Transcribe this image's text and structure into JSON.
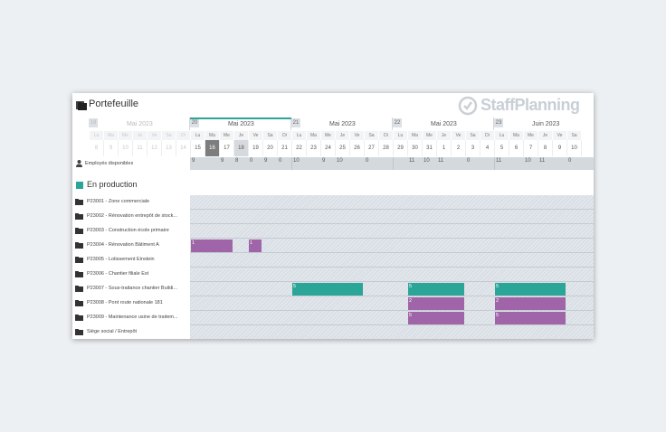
{
  "header": {
    "title": "Portefeuille",
    "logo": {
      "part1": "Staff",
      "part2": "Planning"
    }
  },
  "weeks": [
    {
      "num": "19",
      "month": "Mai 2023",
      "faded": true
    },
    {
      "num": "20",
      "month": "Mai 2023",
      "faded": false
    },
    {
      "num": "21",
      "month": "Mai 2023",
      "faded": false
    },
    {
      "num": "22",
      "month": "Mai 2023",
      "faded": false
    },
    {
      "num": "23",
      "month": "Juin 2023",
      "faded": false
    }
  ],
  "days": [
    "Lu",
    "Ma",
    "Me",
    "Je",
    "Ve",
    "Sa",
    "Di",
    "Lu",
    "Ma",
    "Me",
    "Je",
    "Ve",
    "Sa",
    "Di",
    "Lu",
    "Ma",
    "Me",
    "Je",
    "Ve",
    "Sa",
    "Di",
    "Lu",
    "Ma",
    "Me",
    "Je",
    "Ve",
    "Sa",
    "Di",
    "Lu",
    "Ma",
    "Me",
    "Je",
    "Ve",
    "Sa",
    "Di"
  ],
  "dates": [
    "8",
    "9",
    "10",
    "11",
    "12",
    "13",
    "14",
    "15",
    "16",
    "17",
    "18",
    "19",
    "20",
    "21",
    "22",
    "23",
    "24",
    "25",
    "26",
    "27",
    "28",
    "29",
    "30",
    "31",
    "1",
    "2",
    "3",
    "4",
    "5",
    "6",
    "7",
    "8",
    "9",
    "10",
    "11"
  ],
  "availability": {
    "label": "Employés disponibles",
    "values": [
      {
        "day_index": 7,
        "value": "9"
      },
      {
        "day_index": 9,
        "value": "9"
      },
      {
        "day_index": 10,
        "value": "8"
      },
      {
        "day_index": 11,
        "value": "0"
      },
      {
        "day_index": 12,
        "value": "9"
      },
      {
        "day_index": 13,
        "value": "0"
      },
      {
        "day_index": 14,
        "value": "10"
      },
      {
        "day_index": 16,
        "value": "9"
      },
      {
        "day_index": 17,
        "value": "10"
      },
      {
        "day_index": 19,
        "value": "0"
      },
      {
        "day_index": 22,
        "value": "11"
      },
      {
        "day_index": 23,
        "value": "10"
      },
      {
        "day_index": 24,
        "value": "11"
      },
      {
        "day_index": 26,
        "value": "0"
      },
      {
        "day_index": 28,
        "value": "11"
      },
      {
        "day_index": 30,
        "value": "10"
      },
      {
        "day_index": 31,
        "value": "11"
      },
      {
        "day_index": 33,
        "value": "0"
      }
    ]
  },
  "section": {
    "label": "En production",
    "color": "#2aa597"
  },
  "projects": [
    {
      "label": "P23001 - Zone commerciale"
    },
    {
      "label": "P23002 - Rénovation entrepôt de stock..."
    },
    {
      "label": "P23003 - Construction école primaire"
    },
    {
      "label": "P23004 - Rénovation Bâtiment A"
    },
    {
      "label": "P23005 - Lotissement Einstein"
    },
    {
      "label": "P23006 - Chantier filiale Est"
    },
    {
      "label": "P23007 - Sous-traitance chantier Buildi..."
    },
    {
      "label": "P23008 - Pont route nationale 181"
    },
    {
      "label": "P23009 - Maintenance usine de traitem..."
    },
    {
      "label": "Siège social / Entrepôt"
    }
  ],
  "bars": [
    {
      "row": 3,
      "start": 7,
      "span": 3,
      "label": "1",
      "color": "#a064a8"
    },
    {
      "row": 3,
      "start": 11,
      "span": 1,
      "label": "1",
      "color": "#a064a8"
    },
    {
      "row": 6,
      "start": 14,
      "span": 5,
      "label": "5",
      "color": "#2aa597"
    },
    {
      "row": 6,
      "start": 22,
      "span": 4,
      "label": "5",
      "color": "#2aa597"
    },
    {
      "row": 6,
      "start": 28,
      "span": 5,
      "label": "5",
      "color": "#2aa597"
    },
    {
      "row": 7,
      "start": 22,
      "span": 4,
      "label": "2",
      "color": "#a064a8"
    },
    {
      "row": 7,
      "start": 28,
      "span": 5,
      "label": "2",
      "color": "#a064a8"
    },
    {
      "row": 8,
      "start": 22,
      "span": 4,
      "label": "5",
      "color": "#a064a8"
    },
    {
      "row": 8,
      "start": 28,
      "span": 5,
      "label": "5",
      "color": "#a064a8"
    }
  ],
  "today_index": 8,
  "selected_index": 10
}
